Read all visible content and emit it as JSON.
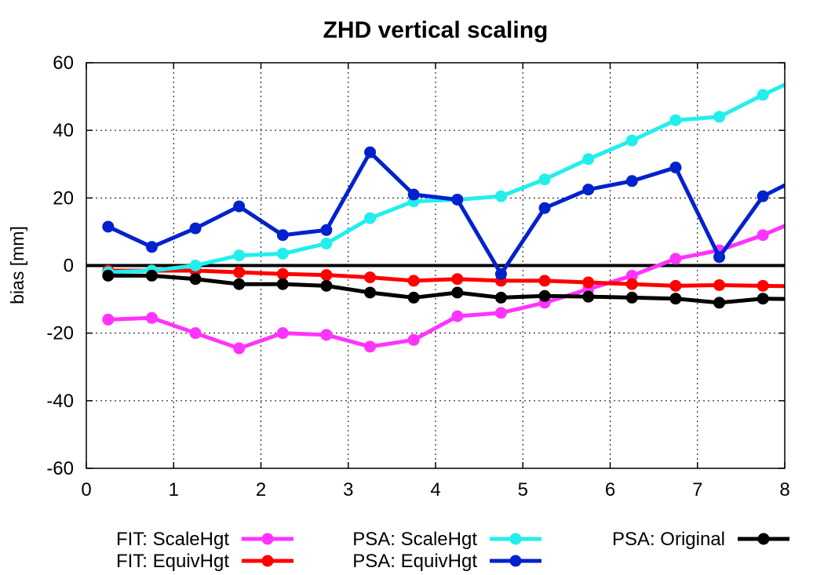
{
  "chart_data": {
    "type": "line",
    "title": "ZHD vertical scaling",
    "xlabel": "",
    "ylabel": "bias [mm]",
    "xlim": [
      0,
      8
    ],
    "ylim": [
      -60,
      60
    ],
    "x_ticks": [
      "0",
      "1",
      "2",
      "3",
      "4",
      "5",
      "6",
      "7",
      "8"
    ],
    "y_ticks": [
      "-60",
      "-40",
      "-20",
      "0",
      "20",
      "40",
      "60"
    ],
    "grid": true,
    "zero_line": true,
    "legend_position": "bottom",
    "x": [
      0.25,
      0.75,
      1.25,
      1.75,
      2.25,
      2.75,
      3.25,
      3.75,
      4.25,
      4.75,
      5.25,
      5.75,
      6.25,
      6.75,
      7.25,
      7.75,
      8.25
    ],
    "series": [
      {
        "name": "FIT: ScaleHgt",
        "color": "#ff33ff",
        "values": [
          -16,
          -15.5,
          -20,
          -24.5,
          -20,
          -20.5,
          -24,
          -22,
          -15,
          -14,
          -11,
          -7,
          -3,
          2,
          4.5,
          9,
          14.5
        ]
      },
      {
        "name": "FIT: EquivHgt",
        "color": "#ff0000",
        "values": [
          -1.5,
          -1.5,
          -1.5,
          -2,
          -2.5,
          -2.8,
          -3.5,
          -4.5,
          -4,
          -4.5,
          -4.5,
          -5,
          -5.5,
          -6,
          -5.8,
          -6,
          -6.2
        ]
      },
      {
        "name": "PSA: ScaleHgt",
        "color": "#22eeee",
        "values": [
          -2,
          -1.5,
          0,
          3,
          3.5,
          6.5,
          14,
          19,
          19.5,
          20.5,
          25.5,
          31.5,
          37,
          43,
          44,
          50.5,
          56.5
        ]
      },
      {
        "name": "PSA: EquivHgt",
        "color": "#0022cc",
        "values": [
          11.5,
          5.5,
          11,
          17.5,
          9,
          10.5,
          33.5,
          21,
          19.5,
          -2.5,
          17,
          22.5,
          25,
          29,
          2.5,
          20.5,
          27
        ]
      },
      {
        "name": "PSA: Original",
        "color": "#000000",
        "values": [
          -3,
          -3,
          -4,
          -5.5,
          -5.5,
          -6,
          -8,
          -9.5,
          -8,
          -9.5,
          -9,
          -9.2,
          -9.5,
          -9.8,
          -11,
          -9.8,
          -10
        ]
      }
    ]
  }
}
